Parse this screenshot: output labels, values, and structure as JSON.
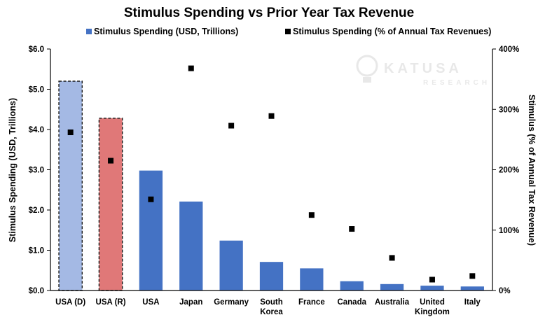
{
  "chart_data": {
    "type": "bar",
    "title": "Stimulus Spending vs Prior Year Tax Revenue",
    "categories": [
      [
        "USA (D)"
      ],
      [
        "USA (R)"
      ],
      [
        "USA"
      ],
      [
        "Japan"
      ],
      [
        "Germany"
      ],
      [
        "South",
        "Korea"
      ],
      [
        "France"
      ],
      [
        "Canada"
      ],
      [
        "Australia"
      ],
      [
        "United",
        "Kingdom"
      ],
      [
        "Italy"
      ]
    ],
    "series": [
      {
        "name": "Stimulus Spending (USD, Trillions)",
        "kind": "bar",
        "axis": "left",
        "values": [
          5.2,
          4.28,
          2.98,
          2.21,
          1.24,
          0.71,
          0.55,
          0.23,
          0.16,
          0.12,
          0.1
        ],
        "colors": [
          "#a4b9e4",
          "#e07878",
          "#4472c4",
          "#4472c4",
          "#4472c4",
          "#4472c4",
          "#4472c4",
          "#4472c4",
          "#4472c4",
          "#4472c4",
          "#4472c4"
        ],
        "dashed_outline": [
          true,
          true,
          false,
          false,
          false,
          false,
          false,
          false,
          false,
          false,
          false
        ]
      },
      {
        "name": "Stimulus Spending (% of Annual Tax Revenues)",
        "kind": "scatter",
        "axis": "right",
        "values": [
          262,
          215,
          151,
          368,
          273,
          289,
          125,
          102,
          54,
          18,
          24
        ],
        "color": "#000000"
      }
    ],
    "ylabel": "Stimulus Spending (USD, Trillions)",
    "ylim": [
      0,
      6
    ],
    "y_ticks": [
      "$0.0",
      "$1.0",
      "$2.0",
      "$3.0",
      "$4.0",
      "$5.0",
      "$6.0"
    ],
    "y2label": "Stimulus (% of Annual Tax Revenue)",
    "y2lim": [
      0,
      400
    ],
    "y2_ticks": [
      "0%",
      "100%",
      "200%",
      "300%",
      "400%"
    ],
    "grid": false,
    "legend_position": "top-center",
    "bar_color": "#4472c4"
  },
  "watermark": {
    "main": "KATUSA",
    "sub": "RESEARCH"
  }
}
